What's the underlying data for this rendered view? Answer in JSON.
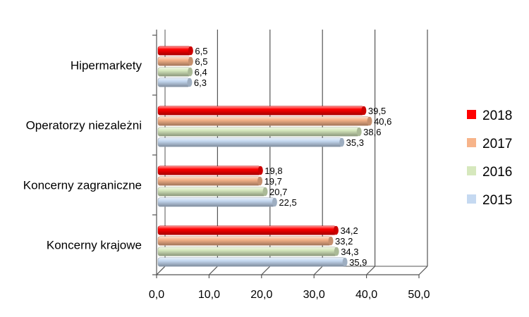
{
  "chart_data": {
    "type": "bar",
    "orientation": "horizontal",
    "categories": [
      "Koncerny krajowe",
      "Koncerny zagraniczne",
      "Operatorzy niezależni",
      "Hipermarkety"
    ],
    "series": [
      {
        "name": "2018",
        "color": "#ff0000",
        "values": [
          34.2,
          19.8,
          39.5,
          6.5
        ]
      },
      {
        "name": "2017",
        "color": "#f7b48a",
        "values": [
          33.2,
          19.7,
          40.6,
          6.5
        ]
      },
      {
        "name": "2016",
        "color": "#d6e8bd",
        "values": [
          34.3,
          20.7,
          38.6,
          6.4
        ]
      },
      {
        "name": "2015",
        "color": "#c5d9f1",
        "values": [
          35.9,
          22.5,
          35.3,
          6.3
        ]
      }
    ],
    "data_labels": [
      [
        "34,2",
        "19,8",
        "39,5",
        "6,5"
      ],
      [
        "33,2",
        "19,7",
        "40,6",
        "6,5"
      ],
      [
        "34,3",
        "20,7",
        "38,6",
        "6,4"
      ],
      [
        "35,9",
        "22,5",
        "35,3",
        "6,3"
      ]
    ],
    "xticks": [
      "0,0",
      "10,0",
      "20,0",
      "30,0",
      "40,0",
      "50,0"
    ],
    "xlim": [
      0,
      50
    ],
    "grid": true,
    "legend_position": "right",
    "title": "",
    "xlabel": "",
    "ylabel": ""
  }
}
